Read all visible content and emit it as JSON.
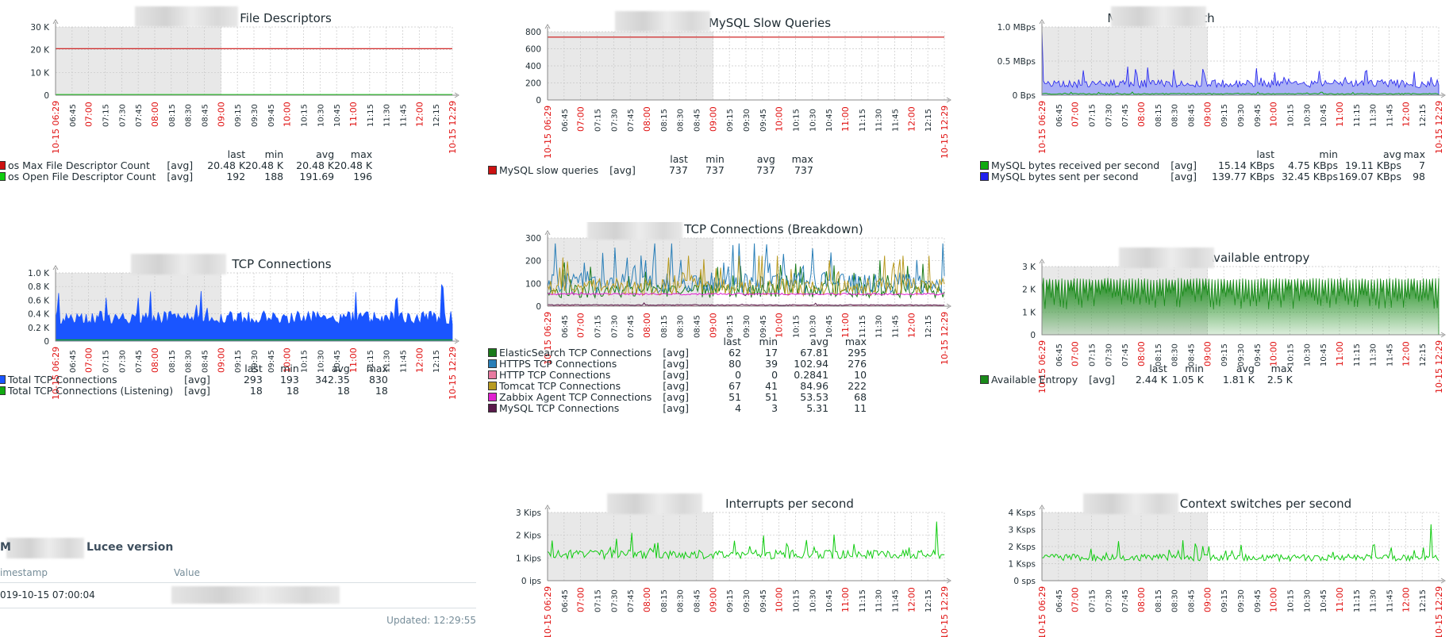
{
  "graphs": [
    {
      "id": "fd",
      "title": "File Descriptors",
      "y_ticks": [
        "30 K",
        "20 K",
        "10 K",
        "0"
      ],
      "ylim": [
        0,
        30000
      ],
      "legend_header": [
        "last",
        "min",
        "avg",
        "max"
      ],
      "series": [
        {
          "name": "os Max File Descriptor Count",
          "func": "[avg]",
          "color": "#cc1111",
          "kind": "line",
          "last": "20.48 K",
          "min": "20.48 K",
          "avg": "20.48 K",
          "max": "20.48 K"
        },
        {
          "name": "os Open File Descriptor Count",
          "func": "[avg]",
          "color": "#11cc11",
          "kind": "line",
          "last": "192",
          "min": "188",
          "avg": "191.69",
          "max": "196"
        }
      ]
    },
    {
      "id": "slow",
      "title": "MySQL Slow Queries",
      "y_ticks": [
        "800",
        "600",
        "400",
        "200",
        "0"
      ],
      "ylim": [
        0,
        800
      ],
      "legend_header": [
        "last",
        "min",
        "avg",
        "max"
      ],
      "series": [
        {
          "name": "MySQL slow queries",
          "func": "[avg]",
          "color": "#cc1111",
          "kind": "line",
          "last": "737",
          "min": "737",
          "avg": "737",
          "max": "737"
        }
      ]
    },
    {
      "id": "bw",
      "title": "MySQL bandwidth",
      "y_ticks": [
        "1.0 MBps",
        "0.5 MBps",
        "0 Bps"
      ],
      "ylim": [
        0,
        1000000
      ],
      "legend_header": [
        "last",
        "min",
        "avg",
        "max"
      ],
      "series": [
        {
          "name": "MySQL bytes received per second",
          "func": "[avg]",
          "color": "#11aa11",
          "kind": "line",
          "last": "15.14 KBps",
          "min": "4.75 KBps",
          "avg": "19.11 KBps",
          "max": "7"
        },
        {
          "name": "MySQL bytes sent per second",
          "func": "[avg]",
          "color": "#2222ee",
          "kind": "area",
          "last": "139.77 KBps",
          "min": "32.45 KBps",
          "avg": "169.07 KBps",
          "max": "98"
        }
      ]
    },
    {
      "id": "tcp",
      "title": "TCP Connections",
      "y_ticks": [
        "1.0 K",
        "0.8 K",
        "0.6 K",
        "0.4 K",
        "0.2 K",
        "0"
      ],
      "ylim": [
        0,
        1000
      ],
      "legend_header": [
        "last",
        "min",
        "avg",
        "max"
      ],
      "series": [
        {
          "name": "Total TCP Connections",
          "func": "[avg]",
          "color": "#1a55ff",
          "kind": "area",
          "last": "293",
          "min": "193",
          "avg": "342.35",
          "max": "830"
        },
        {
          "name": "Total TCP Connections (Listening)",
          "func": "[avg]",
          "color": "#11aa11",
          "kind": "line",
          "last": "18",
          "min": "18",
          "avg": "18",
          "max": "18"
        }
      ]
    },
    {
      "id": "tcpb",
      "title": "TCP Connections (Breakdown)",
      "y_ticks": [
        "300",
        "200",
        "100",
        "0"
      ],
      "ylim": [
        0,
        300
      ],
      "legend_header": [
        "last",
        "min",
        "avg",
        "max"
      ],
      "series": [
        {
          "name": "ElasticSearch TCP Connections",
          "func": "[avg]",
          "color": "#1a7a1a",
          "kind": "line",
          "last": "62",
          "min": "17",
          "avg": "67.81",
          "max": "295"
        },
        {
          "name": "HTTPS TCP Connections",
          "func": "[avg]",
          "color": "#2a7fb8",
          "kind": "line",
          "last": "80",
          "min": "39",
          "avg": "102.94",
          "max": "276"
        },
        {
          "name": "HTTP TCP Connections",
          "func": "[avg]",
          "color": "#e87aa0",
          "kind": "line",
          "last": "0",
          "min": "0",
          "avg": "0.2841",
          "max": "10"
        },
        {
          "name": "Tomcat TCP Connections",
          "func": "[avg]",
          "color": "#b89a20",
          "kind": "line",
          "last": "67",
          "min": "41",
          "avg": "84.96",
          "max": "222"
        },
        {
          "name": "Zabbix Agent TCP Connections",
          "func": "[avg]",
          "color": "#e020d0",
          "kind": "line",
          "last": "51",
          "min": "51",
          "avg": "53.53",
          "max": "68"
        },
        {
          "name": "MySQL TCP Connections",
          "func": "[avg]",
          "color": "#5a1a4a",
          "kind": "line",
          "last": "4",
          "min": "3",
          "avg": "5.31",
          "max": "11"
        }
      ]
    },
    {
      "id": "ent",
      "title": "Available entropy",
      "y_ticks": [
        "3 K",
        "2 K",
        "1 K",
        "0"
      ],
      "ylim": [
        0,
        3000
      ],
      "legend_header": [
        "last",
        "min",
        "avg",
        "max"
      ],
      "series": [
        {
          "name": "Available Entropy",
          "func": "[avg]",
          "color": "#1a8a1a",
          "kind": "area",
          "last": "2.44 K",
          "min": "1.05 K",
          "avg": "1.81 K",
          "max": "2.5 K"
        }
      ]
    },
    {
      "id": "irq",
      "title": "Interrupts per second",
      "y_ticks": [
        "3 Kips",
        "2 Kips",
        "1 Kips",
        "0 ips"
      ],
      "ylim": [
        0,
        3000
      ],
      "series": [
        {
          "name": "Interrupts per second",
          "color": "#11cc11",
          "kind": "line"
        }
      ]
    },
    {
      "id": "cs",
      "title": "Context switches per second",
      "y_ticks": [
        "4 Ksps",
        "3 Ksps",
        "2 Ksps",
        "1 Ksps",
        "0 sps"
      ],
      "ylim": [
        0,
        4000
      ],
      "series": [
        {
          "name": "Context switches per second",
          "color": "#11cc11",
          "kind": "line"
        }
      ]
    }
  ],
  "x_axis": {
    "start_label": "10-15 06:29",
    "end_label": "10-15 12:29",
    "ticks": [
      {
        "t": "06:45",
        "red": false
      },
      {
        "t": "07:00",
        "red": true
      },
      {
        "t": "07:15",
        "red": false
      },
      {
        "t": "07:30",
        "red": false
      },
      {
        "t": "07:45",
        "red": false
      },
      {
        "t": "08:00",
        "red": true
      },
      {
        "t": "08:15",
        "red": false
      },
      {
        "t": "08:30",
        "red": false
      },
      {
        "t": "08:45",
        "red": false
      },
      {
        "t": "09:00",
        "red": true
      },
      {
        "t": "09:15",
        "red": false
      },
      {
        "t": "09:30",
        "red": false
      },
      {
        "t": "09:45",
        "red": false
      },
      {
        "t": "10:00",
        "red": true
      },
      {
        "t": "10:15",
        "red": false
      },
      {
        "t": "10:30",
        "red": false
      },
      {
        "t": "10:45",
        "red": false
      },
      {
        "t": "11:00",
        "red": true
      },
      {
        "t": "11:15",
        "red": false
      },
      {
        "t": "11:30",
        "red": false
      },
      {
        "t": "11:45",
        "red": false
      },
      {
        "t": "12:00",
        "red": true
      },
      {
        "t": "12:15",
        "red": false
      }
    ]
  },
  "lucee": {
    "prefix": "M",
    "title": "Lucee version",
    "col_timestamp": "imestamp",
    "col_value": "Value",
    "row_timestamp": "019-10-15 07:00:04",
    "updated": "Updated: 12:29:55"
  },
  "chart_data": [
    {
      "type": "line",
      "title": "File Descriptors",
      "x": [
        "06:29",
        "12:29"
      ],
      "ylim": [
        0,
        30000
      ],
      "series": [
        {
          "name": "os Max File Descriptor Count",
          "values": [
            20480,
            20480
          ]
        },
        {
          "name": "os Open File Descriptor Count",
          "values": [
            192,
            192
          ]
        }
      ]
    },
    {
      "type": "line",
      "title": "MySQL Slow Queries",
      "x": [
        "06:29",
        "12:29"
      ],
      "ylim": [
        0,
        800
      ],
      "series": [
        {
          "name": "MySQL slow queries",
          "values": [
            737,
            737
          ]
        }
      ]
    },
    {
      "type": "area",
      "title": "MySQL bandwidth",
      "ylim": [
        0,
        1000000
      ],
      "series": [
        {
          "name": "MySQL bytes received per second",
          "avg": 19110,
          "min": 4750,
          "last": 15140
        },
        {
          "name": "MySQL bytes sent per second",
          "avg": 169070,
          "min": 32450,
          "last": 139770
        }
      ]
    },
    {
      "type": "area",
      "title": "TCP Connections",
      "ylim": [
        0,
        1000
      ],
      "series": [
        {
          "name": "Total TCP Connections",
          "avg": 342.35,
          "min": 193,
          "max": 830,
          "last": 293
        },
        {
          "name": "Total TCP Connections (Listening)",
          "avg": 18,
          "min": 18,
          "max": 18,
          "last": 18
        }
      ]
    },
    {
      "type": "line",
      "title": "TCP Connections (Breakdown)",
      "ylim": [
        0,
        300
      ],
      "series": [
        {
          "name": "ElasticSearch TCP Connections",
          "avg": 67.81,
          "min": 17,
          "max": 295
        },
        {
          "name": "HTTPS TCP Connections",
          "avg": 102.94,
          "min": 39,
          "max": 276
        },
        {
          "name": "HTTP TCP Connections",
          "avg": 0.2841,
          "min": 0,
          "max": 10
        },
        {
          "name": "Tomcat TCP Connections",
          "avg": 84.96,
          "min": 41,
          "max": 222
        },
        {
          "name": "Zabbix Agent TCP Connections",
          "avg": 53.53,
          "min": 51,
          "max": 68
        },
        {
          "name": "MySQL TCP Connections",
          "avg": 5.31,
          "min": 3,
          "max": 11
        }
      ]
    },
    {
      "type": "area",
      "title": "Available entropy",
      "ylim": [
        0,
        3000
      ],
      "series": [
        {
          "name": "Available Entropy",
          "avg": 1810,
          "min": 1050,
          "max": 2500,
          "last": 2440
        }
      ]
    },
    {
      "type": "line",
      "title": "Interrupts per second",
      "ylim": [
        0,
        3000
      ],
      "series": [
        {
          "name": "Interrupts per second",
          "avg": 1150,
          "min": 750,
          "max": 2600
        }
      ]
    },
    {
      "type": "line",
      "title": "Context switches per second",
      "ylim": [
        0,
        4000
      ],
      "series": [
        {
          "name": "Context switches per second",
          "avg": 1350,
          "min": 1000,
          "max": 3300
        }
      ]
    }
  ]
}
